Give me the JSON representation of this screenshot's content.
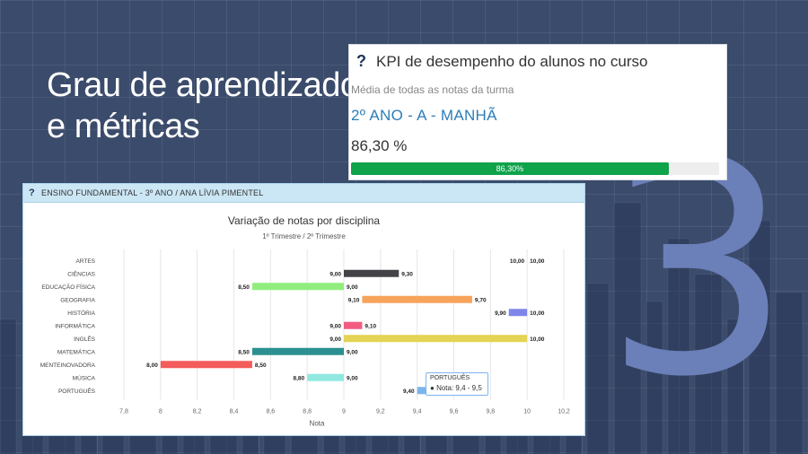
{
  "headline": {
    "line1": "Grau de aprendizado",
    "line2": "e métricas"
  },
  "big_number": "3",
  "kpi": {
    "title": "KPI de desempenho do alunos no curso",
    "subtitle": "Média de todas as notas da turma",
    "group": "2º ANO - A - MANHÃ",
    "value": "86,30 %",
    "progress": 0.863,
    "progress_label": "86,30%",
    "progress_color": "#0fa34a"
  },
  "panel": {
    "header": "ENSINO FUNDAMENTAL - 3º ANO / ANA LÍVIA PIMENTEL"
  },
  "tooltip": {
    "title": "PORTUGUÊS",
    "line": "Nota: 9,4 - 9,5"
  },
  "chart_data": {
    "type": "bar",
    "orientation": "horizontal-range",
    "title": "Variação de notas por disciplina",
    "subtitle": "1º Trimestre / 2º Trimestre",
    "xlabel": "Nota",
    "xlim": [
      7.8,
      10.2
    ],
    "xticks": [
      "7,8",
      "8",
      "8,2",
      "8,4",
      "8,6",
      "8,8",
      "9",
      "9,2",
      "9,4",
      "9,6",
      "9,8",
      "10",
      "10,2"
    ],
    "categories": [
      "ARTES",
      "CIÊNCIAS",
      "EDUCAÇÃO FÍSICA",
      "GEOGRAFIA",
      "HISTÓRIA",
      "INFORMÁTICA",
      "INGLÊS",
      "MATEMÁTICA",
      "MENTEINOVADORA",
      "MÚSICA",
      "PORTUGUÊS"
    ],
    "low": [
      10.0,
      9.0,
      8.5,
      9.1,
      9.9,
      9.0,
      9.0,
      8.5,
      8.0,
      8.8,
      9.4
    ],
    "high": [
      10.0,
      9.3,
      9.0,
      9.7,
      10.0,
      9.1,
      10.0,
      9.0,
      8.5,
      9.0,
      9.5
    ],
    "low_labels": [
      "10,00",
      "9,00",
      "8,50",
      "9,10",
      "9,90",
      "9,00",
      "9,00",
      "8,50",
      "8,00",
      "8,80",
      "9,40"
    ],
    "high_labels": [
      "10,00",
      "9,30",
      "9,00",
      "9,70",
      "10,00",
      "9,10",
      "10,00",
      "9,00",
      "8,50",
      "9,00",
      ""
    ],
    "colors": [
      "#2b908f",
      "#434348",
      "#90ed7d",
      "#f7a35c",
      "#8085e9",
      "#f15c80",
      "#e4d354",
      "#2b908f",
      "#f45b5b",
      "#91e8e1",
      "#7cb5ec"
    ],
    "grid": true,
    "legend": "none"
  }
}
